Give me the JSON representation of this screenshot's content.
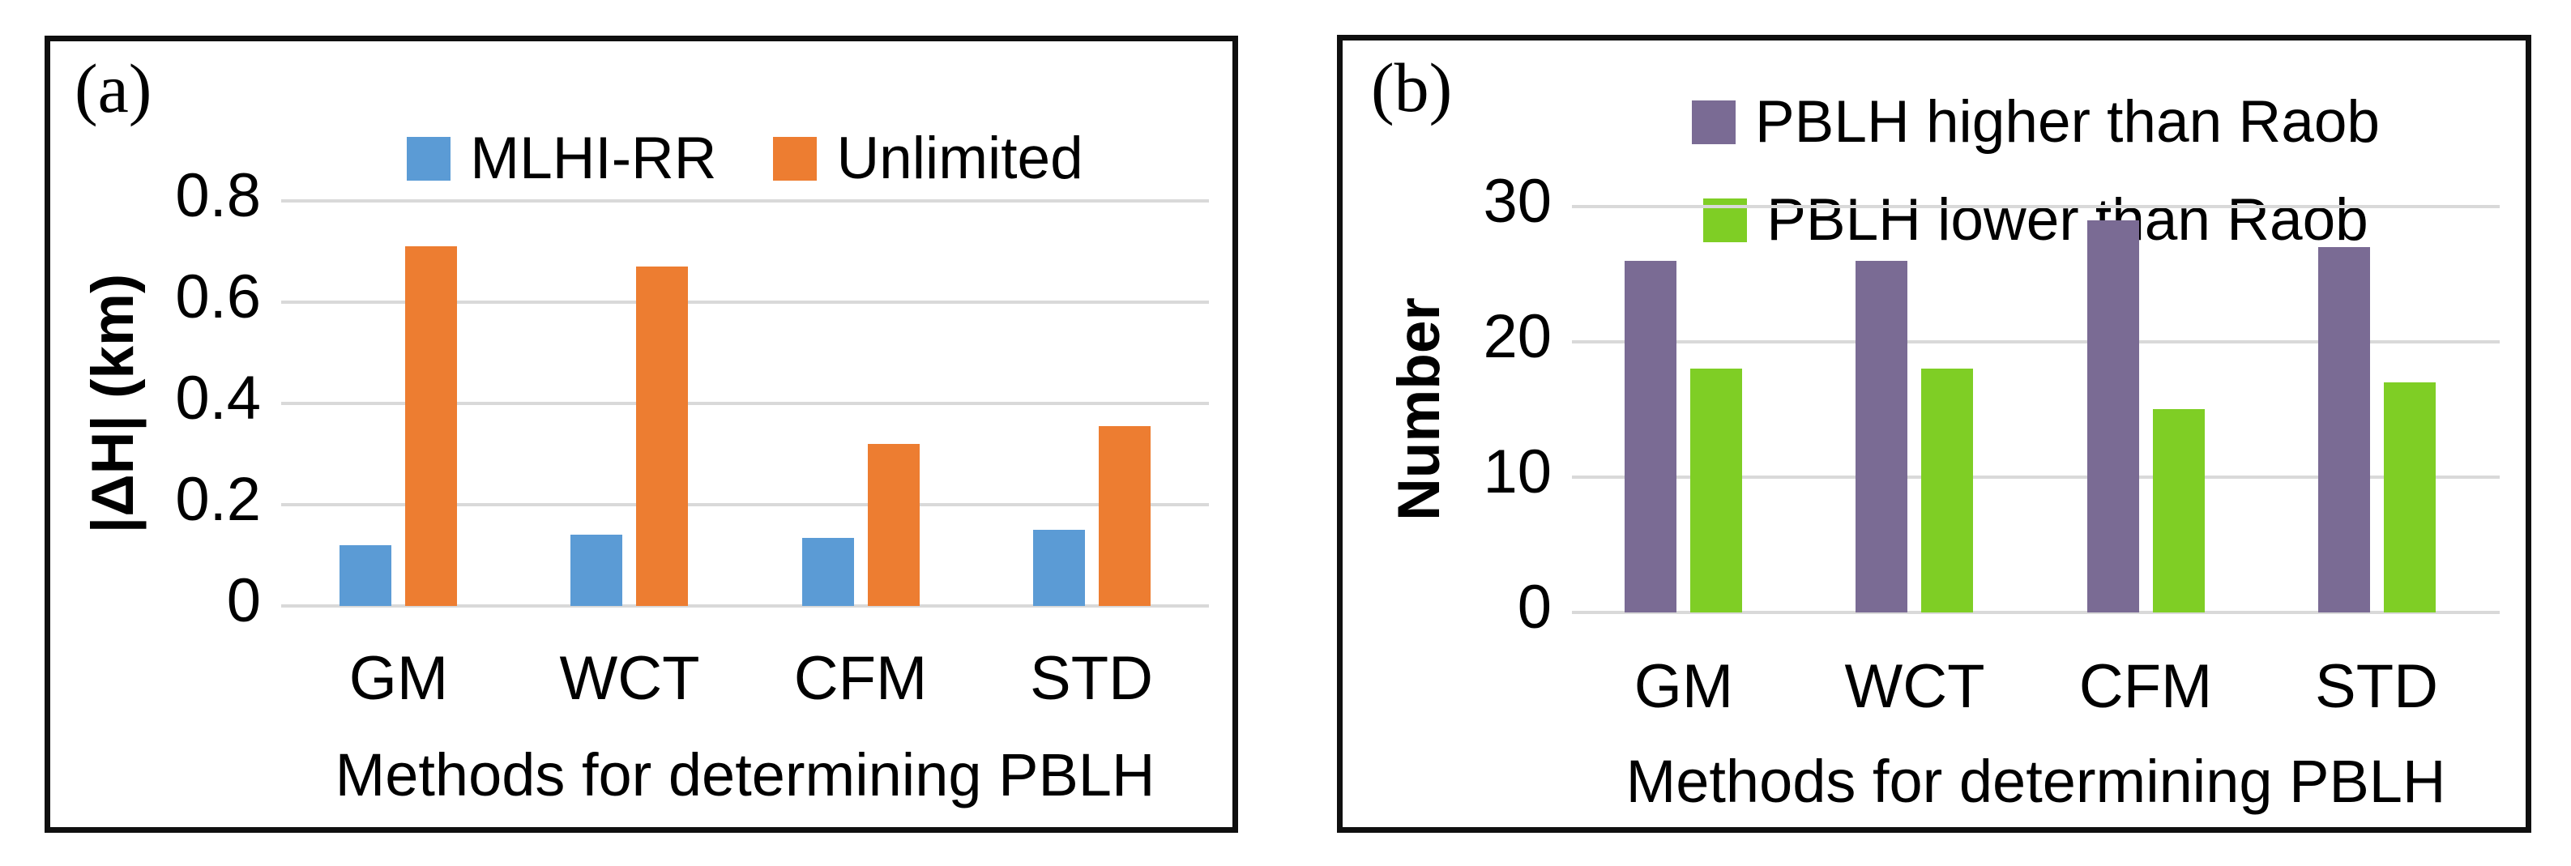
{
  "figure_title": "",
  "chart_data": [
    {
      "type": "bar",
      "panel": "(a)",
      "categories": [
        "GM",
        "WCT",
        "CFM",
        "STD"
      ],
      "series": [
        {
          "name": "MLHI-RR",
          "color": "#5B9BD5",
          "values": [
            0.12,
            0.14,
            0.135,
            0.15
          ]
        },
        {
          "name": "Unlimited",
          "color": "#ED7D31",
          "values": [
            0.71,
            0.67,
            0.32,
            0.355
          ]
        }
      ],
      "title": "",
      "xlabel": "Methods for determining PBLH",
      "ylabel": "|ΔH| (km)",
      "yticks": [
        "0.8",
        "0.6",
        "0.4",
        "0.2",
        "0"
      ],
      "ylim": [
        0,
        0.8
      ],
      "grid": true,
      "gridline_color": "#d9d9d9",
      "legend_position": "top-center-single-row"
    },
    {
      "type": "bar",
      "panel": "(b)",
      "categories": [
        "GM",
        "WCT",
        "CFM",
        "STD"
      ],
      "series": [
        {
          "name": "PBLH higher than Raob",
          "color": "#7A6B94",
          "values": [
            26,
            26,
            29,
            27
          ]
        },
        {
          "name": "PBLH lower than Raob",
          "color": "#7FCE25",
          "values": [
            18,
            18,
            15,
            17
          ]
        }
      ],
      "title": "",
      "xlabel": "Methods for determining PBLH",
      "ylabel": "Number",
      "yticks": [
        "30",
        "20",
        "10",
        "0"
      ],
      "ylim": [
        0,
        30
      ],
      "grid": true,
      "gridline_color": "#d9d9d9",
      "legend_position": "top-center-two-rows"
    }
  ]
}
